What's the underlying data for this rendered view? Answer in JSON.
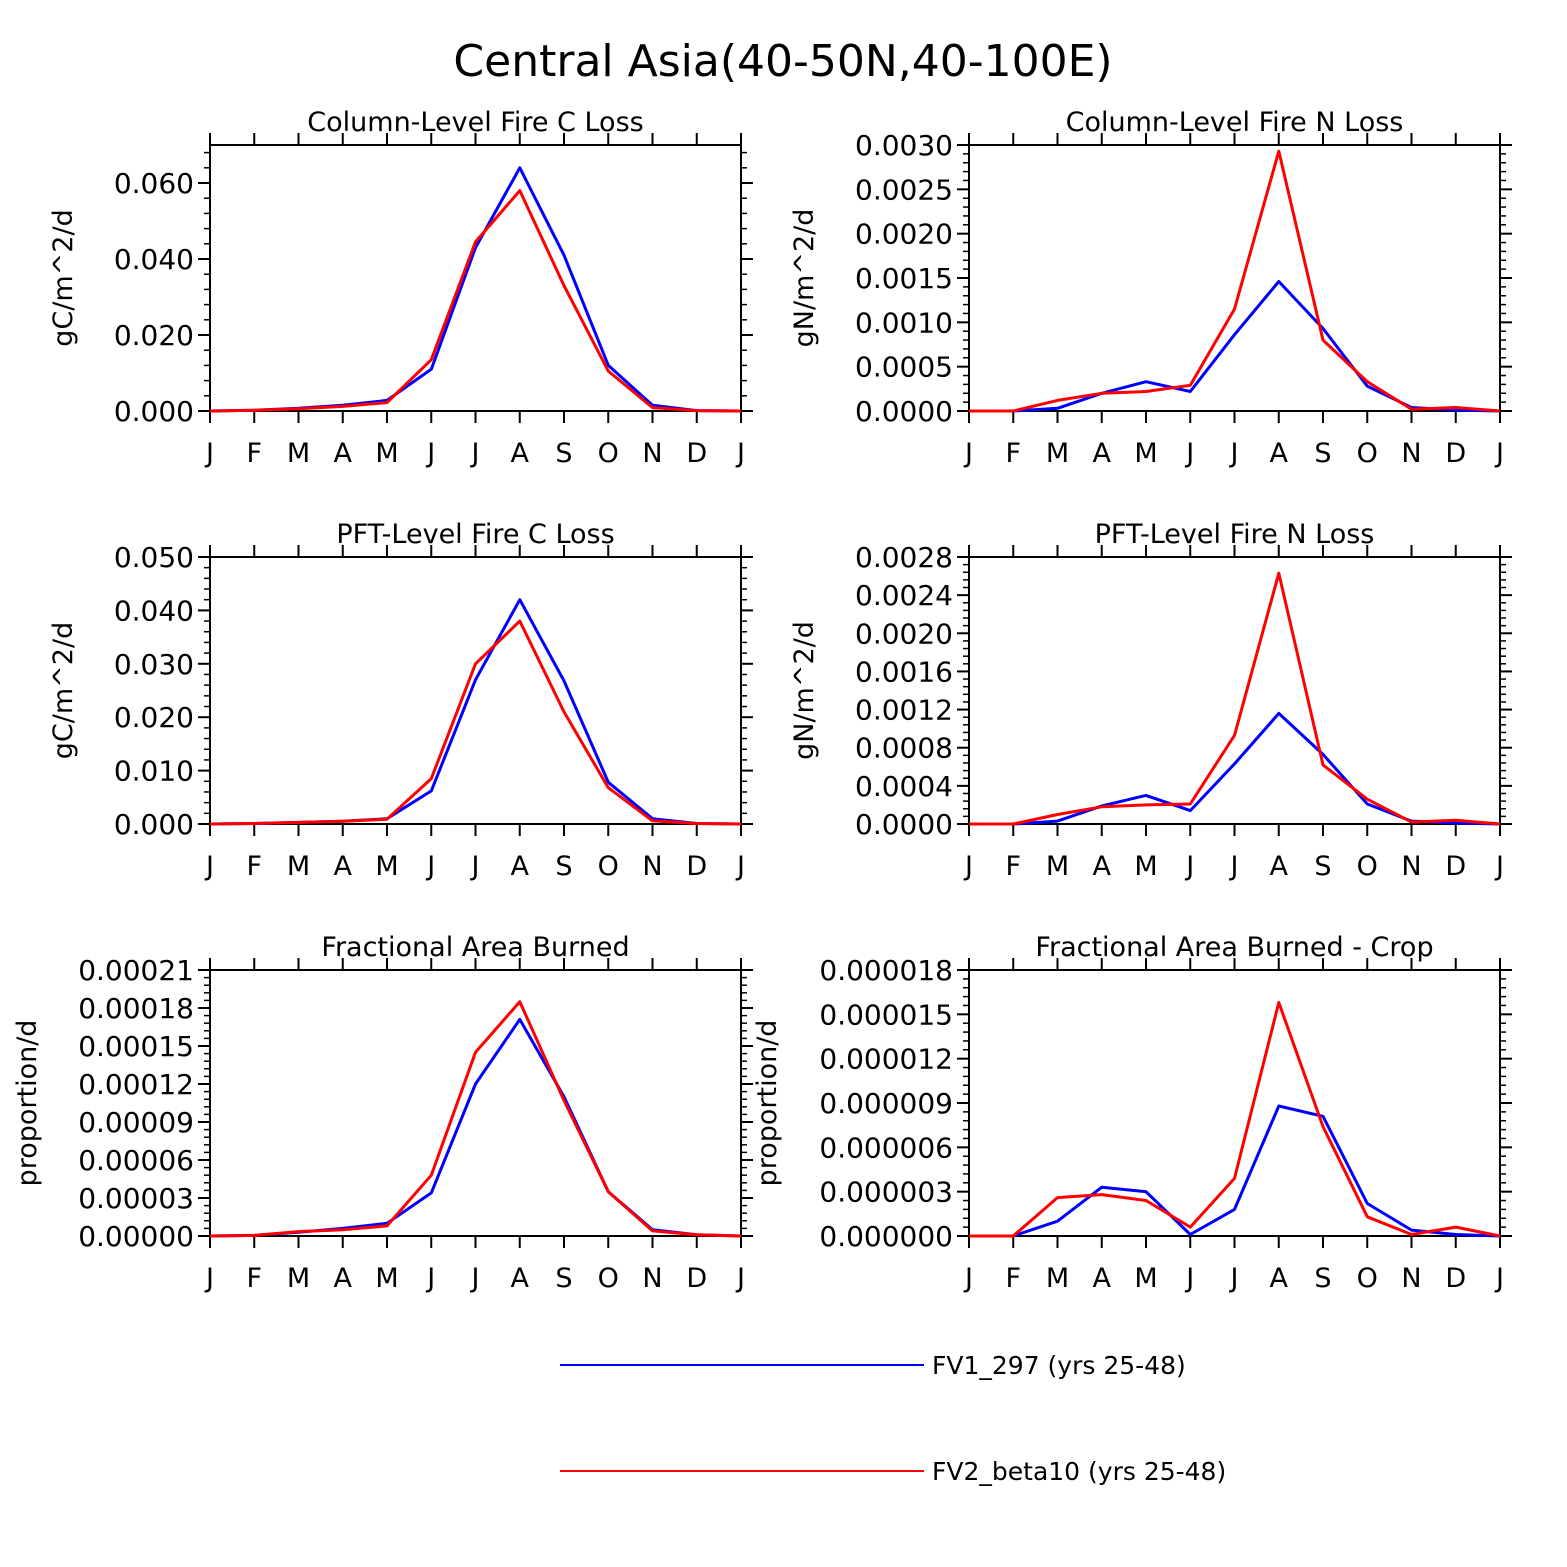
{
  "figure_title": "Central Asia(40-50N,40-100E)",
  "months": [
    "J",
    "F",
    "M",
    "A",
    "M",
    "J",
    "J",
    "A",
    "S",
    "O",
    "N",
    "D",
    "J"
  ],
  "legend": [
    {
      "name": "FV1_297 (yrs 25-48)",
      "color": "#0000ff"
    },
    {
      "name": "FV2_beta10 (yrs 25-48)",
      "color": "#ff0000"
    }
  ],
  "chart_data": [
    {
      "type": "line",
      "title": "Column-Level Fire C Loss",
      "ylabel": "gC/m^2/d",
      "ylim": [
        0,
        0.07
      ],
      "yticks": [
        0,
        0.02,
        0.04,
        0.06
      ],
      "ytick_labels": [
        "0.000",
        "0.020",
        "0.040",
        "0.060"
      ],
      "ylabel_pos": "left",
      "series": [
        {
          "name": "FV1_297 (yrs 25-48)",
          "color": "#0000ff",
          "values": [
            0,
            0.0002,
            0.0007,
            0.0015,
            0.0028,
            0.011,
            0.043,
            0.064,
            0.041,
            0.012,
            0.0015,
            0.0001,
            0
          ]
        },
        {
          "name": "FV2_beta10 (yrs 25-48)",
          "color": "#ff0000",
          "values": [
            0,
            0.0002,
            0.0006,
            0.0012,
            0.0022,
            0.0135,
            0.0445,
            0.058,
            0.033,
            0.0105,
            0.0009,
            0.0001,
            0
          ]
        }
      ]
    },
    {
      "type": "line",
      "title": "Column-Level Fire N Loss",
      "ylabel": "gN/m^2/d",
      "ylim": [
        0,
        0.003
      ],
      "yticks": [
        0,
        0.0005,
        0.001,
        0.0015,
        0.002,
        0.0025,
        0.003
      ],
      "ytick_labels": [
        "0.0000",
        "0.0005",
        "0.0010",
        "0.0015",
        "0.0020",
        "0.0025",
        "0.0030"
      ],
      "ylabel_pos": "left",
      "series": [
        {
          "name": "FV1_297 (yrs 25-48)",
          "color": "#0000ff",
          "values": [
            0,
            0,
            3e-05,
            0.0002,
            0.00033,
            0.00022,
            0.00086,
            0.00146,
            0.00093,
            0.00028,
            4e-05,
            1e-05,
            0
          ]
        },
        {
          "name": "FV2_beta10 (yrs 25-48)",
          "color": "#ff0000",
          "values": [
            0,
            0,
            0.00012,
            0.0002,
            0.00022,
            0.00029,
            0.00115,
            0.00293,
            0.0008,
            0.00033,
            2e-05,
            4e-05,
            0
          ]
        }
      ]
    },
    {
      "type": "line",
      "title": "PFT-Level Fire C Loss",
      "ylabel": "gC/m^2/d",
      "ylim": [
        0,
        0.05
      ],
      "yticks": [
        0,
        0.01,
        0.02,
        0.03,
        0.04,
        0.05
      ],
      "ytick_labels": [
        "0.000",
        "0.010",
        "0.020",
        "0.030",
        "0.040",
        "0.050"
      ],
      "ylabel_pos": "left",
      "series": [
        {
          "name": "FV1_297 (yrs 25-48)",
          "color": "#0000ff",
          "values": [
            0,
            0.0001,
            0.0003,
            0.0005,
            0.001,
            0.0062,
            0.027,
            0.042,
            0.0268,
            0.0078,
            0.001,
            0.0001,
            0
          ]
        },
        {
          "name": "FV2_beta10 (yrs 25-48)",
          "color": "#ff0000",
          "values": [
            0,
            0.0001,
            0.0003,
            0.0005,
            0.0009,
            0.0085,
            0.03,
            0.038,
            0.021,
            0.0068,
            0.0006,
            0.0001,
            0
          ]
        }
      ]
    },
    {
      "type": "line",
      "title": "PFT-Level Fire N Loss",
      "ylabel": "gN/m^2/d",
      "ylim": [
        0,
        0.0028
      ],
      "yticks": [
        0,
        0.0004,
        0.0008,
        0.0012,
        0.0016,
        0.002,
        0.0024,
        0.0028
      ],
      "ytick_labels": [
        "0.0000",
        "0.0004",
        "0.0008",
        "0.0012",
        "0.0016",
        "0.0020",
        "0.0024",
        "0.0028"
      ],
      "ylabel_pos": "left",
      "series": [
        {
          "name": "FV1_297 (yrs 25-48)",
          "color": "#0000ff",
          "values": [
            0,
            0,
            3e-05,
            0.00019,
            0.0003,
            0.00014,
            0.00063,
            0.00116,
            0.00073,
            0.00021,
            3e-05,
            1e-05,
            0
          ]
        },
        {
          "name": "FV2_beta10 (yrs 25-48)",
          "color": "#ff0000",
          "values": [
            0,
            0,
            0.0001,
            0.00018,
            0.0002,
            0.00021,
            0.00093,
            0.00263,
            0.00062,
            0.00026,
            2e-05,
            4e-05,
            0
          ]
        }
      ]
    },
    {
      "type": "line",
      "title": "Fractional Area Burned",
      "ylabel": "proportion/d",
      "ylim": [
        0,
        0.00021
      ],
      "yticks": [
        0,
        3e-05,
        6e-05,
        9e-05,
        0.00012,
        0.00015,
        0.00018,
        0.00021
      ],
      "ytick_labels": [
        "0.00000",
        "0.00003",
        "0.00006",
        "0.00009",
        "0.00012",
        "0.00015",
        "0.00018",
        "0.00021"
      ],
      "ylabel_pos": "left",
      "series": [
        {
          "name": "FV1_297 (yrs 25-48)",
          "color": "#0000ff",
          "values": [
            0,
            5e-07,
            3e-06,
            6e-06,
            1e-05,
            3.4e-05,
            0.00012,
            0.000171,
            0.00011,
            3.5e-05,
            5e-06,
            1e-06,
            0
          ]
        },
        {
          "name": "FV2_beta10 (yrs 25-48)",
          "color": "#ff0000",
          "values": [
            0,
            5e-07,
            3.5e-06,
            5e-06,
            8e-06,
            4.8e-05,
            0.000145,
            0.000185,
            0.000107,
            3.5e-05,
            4e-06,
            1e-06,
            0
          ]
        }
      ]
    },
    {
      "type": "line",
      "title": "Fractional Area Burned - Crop",
      "ylabel": "proportion/d",
      "ylim": [
        0,
        1.8e-05
      ],
      "yticks": [
        0,
        3e-06,
        6e-06,
        9e-06,
        1.2e-05,
        1.5e-05,
        1.8e-05
      ],
      "ytick_labels": [
        "0.000000",
        "0.000003",
        "0.000006",
        "0.000009",
        "0.000012",
        "0.000015",
        "0.000018"
      ],
      "ylabel_pos": "left",
      "series": [
        {
          "name": "FV1_297 (yrs 25-48)",
          "color": "#0000ff",
          "values": [
            0,
            0,
            1e-06,
            3.3e-06,
            3e-06,
            1e-07,
            1.8e-06,
            8.8e-06,
            8.1e-06,
            2.2e-06,
            4e-07,
            1e-07,
            0
          ]
        },
        {
          "name": "FV2_beta10 (yrs 25-48)",
          "color": "#ff0000",
          "values": [
            0,
            0,
            2.6e-06,
            2.8e-06,
            2.4e-06,
            6e-07,
            3.9e-06,
            1.58e-05,
            7.4e-06,
            1.3e-06,
            1e-07,
            6e-07,
            0
          ]
        }
      ]
    }
  ]
}
